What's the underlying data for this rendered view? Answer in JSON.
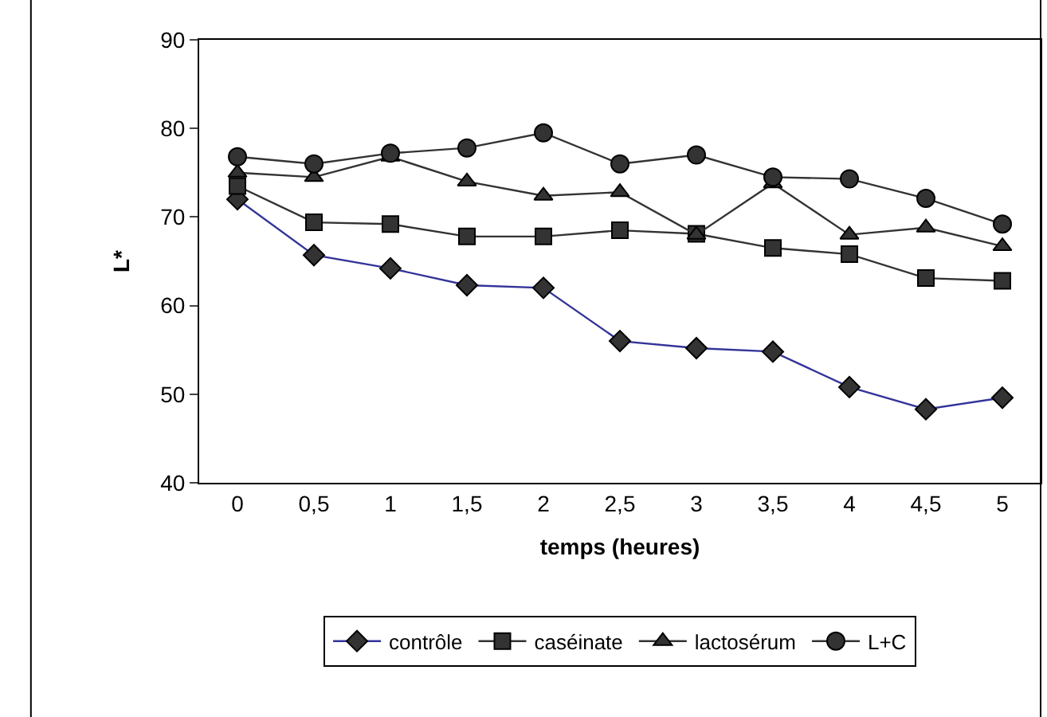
{
  "chart_data": {
    "type": "line",
    "xlabel": "temps (heures)",
    "ylabel": "L*",
    "categories": [
      "0",
      "0,5",
      "1",
      "1,5",
      "2",
      "2,5",
      "3",
      "3,5",
      "4",
      "4,5",
      "5"
    ],
    "ylim": [
      40,
      90
    ],
    "yticks": [
      40,
      50,
      60,
      70,
      80,
      90
    ],
    "grid": false,
    "legend": "bottom",
    "series": [
      {
        "name": "contrôle",
        "color": "#333399",
        "marker": "diamond",
        "values": [
          72,
          65.7,
          64.2,
          62.3,
          62,
          56,
          55.2,
          54.8,
          50.8,
          48.3,
          49.6
        ]
      },
      {
        "name": "caséinate",
        "color": "#333333",
        "marker": "square",
        "values": [
          73.5,
          69.4,
          69.2,
          67.8,
          67.8,
          68.5,
          68.1,
          66.5,
          65.8,
          63.1,
          62.8
        ]
      },
      {
        "name": "lactosérum",
        "color": "#333333",
        "marker": "triangle",
        "values": [
          75,
          74.5,
          76.8,
          74,
          72.4,
          72.8,
          68,
          73.8,
          68,
          68.8,
          66.7
        ]
      },
      {
        "name": "L+C",
        "color": "#333333",
        "marker": "circle",
        "values": [
          76.8,
          76,
          77.2,
          77.8,
          79.5,
          76,
          77,
          74.5,
          74.3,
          72.1,
          69.2
        ]
      }
    ]
  }
}
